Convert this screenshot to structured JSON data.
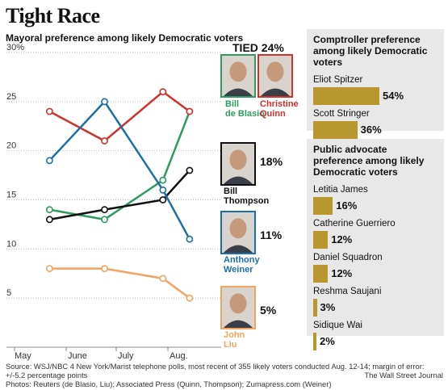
{
  "title": "Tight Race",
  "subtitle": "Mayoral preference among likely Democratic voters",
  "tied_label": "TIED 24%",
  "candidates": [
    {
      "key": "deblasio",
      "name": "Bill\nde Blasio",
      "pct": "",
      "color": "#2e9a5f"
    },
    {
      "key": "quinn",
      "name": "Christine\nQuinn",
      "pct": "",
      "color": "#d0312d"
    },
    {
      "key": "thompson",
      "name": "Bill\nThompson",
      "pct": "18%",
      "color": "#111111"
    },
    {
      "key": "weiner",
      "name": "Anthony\nWeiner",
      "pct": "11%",
      "color": "#1b6fa8"
    },
    {
      "key": "liu",
      "name": "John\nLiu",
      "pct": "5%",
      "color": "#f4a460"
    }
  ],
  "chart_data": {
    "type": "line",
    "title": "Mayoral preference among likely Democratic voters",
    "xlabel": "",
    "ylabel": "",
    "ylim": [
      0,
      30
    ],
    "yticks": [
      "30%",
      "25",
      "20",
      "15",
      "10",
      "5"
    ],
    "x_axis_labels": [
      "May",
      "June",
      "July",
      "Aug."
    ],
    "x": [
      "2013-05-22",
      "2013-06-24",
      "2013-07-29",
      "2013-08-14"
    ],
    "series": [
      {
        "name": "Bill de Blasio",
        "color": "#2e9a5f",
        "values": [
          14,
          13,
          17,
          24
        ]
      },
      {
        "name": "Christine Quinn",
        "color": "#d0312d",
        "values": [
          24,
          21,
          26,
          24
        ]
      },
      {
        "name": "Bill Thompson",
        "color": "#111111",
        "values": [
          13,
          14,
          15,
          18
        ]
      },
      {
        "name": "Anthony Weiner",
        "color": "#1b6fa8",
        "values": [
          19,
          25,
          16,
          11
        ]
      },
      {
        "name": "John Liu",
        "color": "#f4a460",
        "values": [
          8,
          8,
          7,
          5
        ]
      }
    ]
  },
  "comptroller": {
    "title": "Comptroller preference among likely Democratic voters",
    "items": [
      {
        "label": "Eliot Spitzer",
        "value": 54,
        "text": "54%"
      },
      {
        "label": "Scott Stringer",
        "value": 36,
        "text": "36%"
      }
    ]
  },
  "advocate": {
    "title": "Public advocate preference among likely Democratic voters",
    "items": [
      {
        "label": "Letitia James",
        "value": 16,
        "text": "16%"
      },
      {
        "label": "Catherine Guerriero",
        "value": 12,
        "text": "12%"
      },
      {
        "label": "Daniel Squadron",
        "value": 12,
        "text": "12%"
      },
      {
        "label": "Reshma Saujani",
        "value": 3,
        "text": "3%"
      },
      {
        "label": "Sidique Wai",
        "value": 2,
        "text": "2%"
      }
    ]
  },
  "source_line1": "Source: WSJ/NBC 4 New York/Marist telephone polls, most recent of 355 likely voters conducted Aug. 12-14; margin of error: +/-5.2 percentage points",
  "source_line2": "Photos: Reuters (de Blasio, Liu); Associated Press (Quinn, Thompson); Zumapress.com (Weiner)",
  "credit": "The Wall Street Journal"
}
